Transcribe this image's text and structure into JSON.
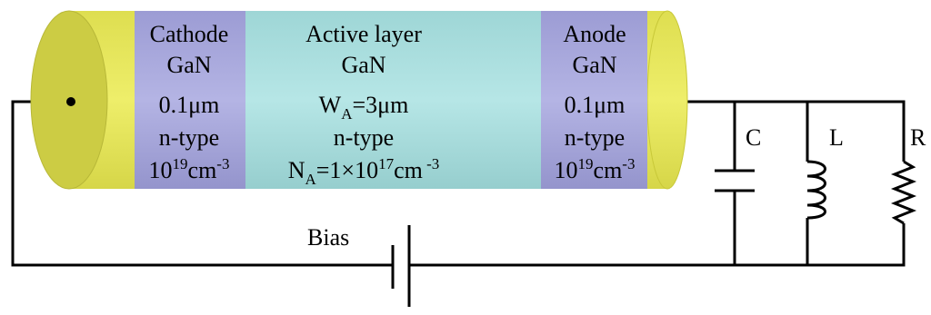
{
  "device": {
    "cathode": {
      "lines": [
        "Cathode",
        "GaN",
        "0.1μm",
        "n-type"
      ],
      "doping": {
        "base": "10",
        "exp": "19",
        "unit": "cm",
        "unit_exp": "-3"
      }
    },
    "active": {
      "title": "Active layer",
      "material": "GaN",
      "width": {
        "sym": "W",
        "sub": "A",
        "rest": "=3μm"
      },
      "type": "n-type",
      "doping": {
        "sym": "N",
        "sub": "A",
        "mid": "=1×10",
        "exp": "17",
        "unit": "cm",
        "unit_exp": " -3"
      }
    },
    "anode": {
      "lines": [
        "Anode",
        "GaN",
        "0.1μm",
        "n-type"
      ],
      "doping": {
        "base": "10",
        "exp": "19",
        "unit": "cm",
        "unit_exp": "-3"
      }
    }
  },
  "circuit": {
    "bias_label": "Bias",
    "capacitor_label": "C",
    "inductor_label": "L",
    "resistor_label": "R"
  },
  "colors": {
    "contact": "#e6e65a",
    "contact_edge": "#c8c838",
    "cathode_layer": "#a8a8dc",
    "active_layer": "#a8dcdc",
    "anode_layer": "#a8a8dc"
  }
}
